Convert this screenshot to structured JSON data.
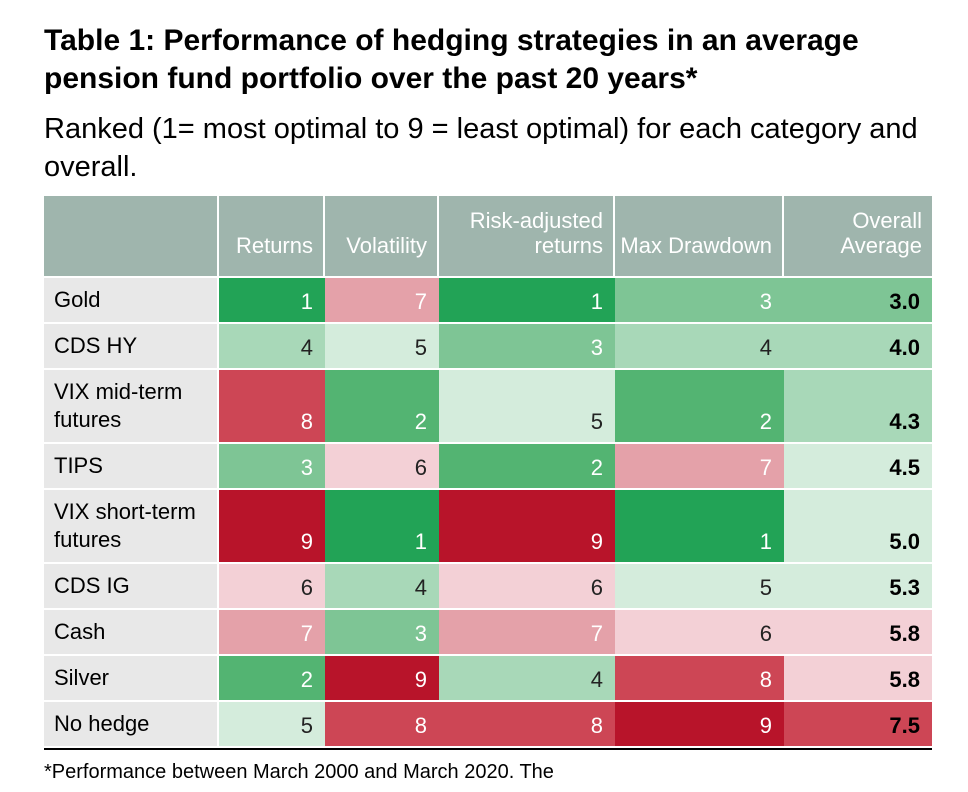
{
  "document": {
    "title": "Table 1: Performance of hedging strategies in an average pension fund portfolio over the past 20 years*",
    "subtitle": "Ranked (1= most optimal to 9 = least optimal) for each category and overall.",
    "footnote": "*Performance between March 2000 and March 2020. The"
  },
  "table": {
    "headers": [
      "",
      "Returns",
      "Volatility",
      "Risk-adjusted returns",
      "Max Drawdown",
      "Overall Average"
    ],
    "rows": [
      {
        "label": "Gold",
        "returns": "1",
        "volatility": "7",
        "risk_adjusted": "1",
        "max_drawdown": "3",
        "overall": "3.0"
      },
      {
        "label": "CDS HY",
        "returns": "4",
        "volatility": "5",
        "risk_adjusted": "3",
        "max_drawdown": "4",
        "overall": "4.0"
      },
      {
        "label": "VIX mid-term futures",
        "returns": "8",
        "volatility": "2",
        "risk_adjusted": "5",
        "max_drawdown": "2",
        "overall": "4.3"
      },
      {
        "label": "TIPS",
        "returns": "3",
        "volatility": "6",
        "risk_adjusted": "2",
        "max_drawdown": "7",
        "overall": "4.5"
      },
      {
        "label": "VIX short-term futures",
        "returns": "9",
        "volatility": "1",
        "risk_adjusted": "9",
        "max_drawdown": "1",
        "overall": "5.0"
      },
      {
        "label": "CDS IG",
        "returns": "6",
        "volatility": "4",
        "risk_adjusted": "6",
        "max_drawdown": "5",
        "overall": "5.3"
      },
      {
        "label": "Cash",
        "returns": "7",
        "volatility": "3",
        "risk_adjusted": "7",
        "max_drawdown": "6",
        "overall": "5.8"
      },
      {
        "label": "Silver",
        "returns": "2",
        "volatility": "9",
        "risk_adjusted": "4",
        "max_drawdown": "8",
        "overall": "5.8"
      },
      {
        "label": "No hedge",
        "returns": "5",
        "volatility": "8",
        "risk_adjusted": "8",
        "max_drawdown": "9",
        "overall": "7.5"
      }
    ]
  },
  "colors": {
    "header_bg": "#9fb5ad",
    "label_bg": "#e8e8e8",
    "rank_1": "#22a356",
    "rank_2": "#53b472",
    "rank_3": "#7ec595",
    "rank_4": "#a8d8b8",
    "rank_5": "#d4ecdc",
    "rank_6": "#f3d0d6",
    "rank_7": "#e4a1a9",
    "rank_8": "#cd4655",
    "rank_9": "#b8142a",
    "overall_3_0": "#7ec595",
    "overall_4_0": "#a8d8b8",
    "overall_4_3": "#a8d8b8",
    "overall_4_5": "#d4ecdc",
    "overall_5_0": "#d4ecdc",
    "overall_5_3": "#d4ecdc",
    "overall_5_8": "#f3d0d6",
    "overall_7_5": "#cd4655"
  }
}
